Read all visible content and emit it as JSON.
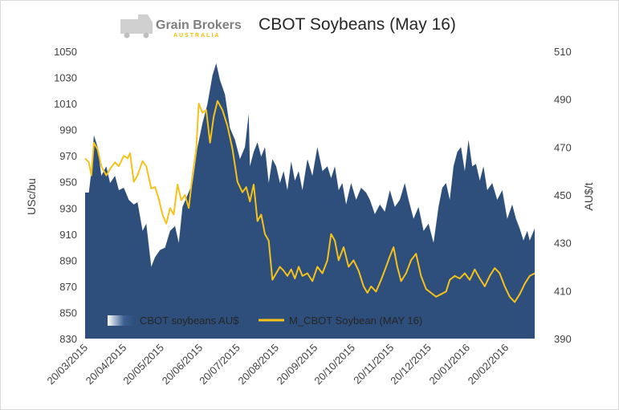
{
  "chart_data": {
    "type": "area",
    "title": "CBOT Soybeans (May 16)",
    "logo": {
      "name": "Grain Brokers",
      "sub": "AUSTRALIA"
    },
    "ylabel_left": "USc/bu",
    "ylabel_right": "AU$/t",
    "ylim_left": [
      830,
      1050
    ],
    "ylim_right": [
      390,
      510
    ],
    "yticks_left": [
      "1050",
      "1030",
      "1010",
      "990",
      "970",
      "950",
      "930",
      "910",
      "890",
      "870",
      "850",
      "830"
    ],
    "yticks_right": [
      "510",
      "490",
      "470",
      "450",
      "430",
      "410",
      "390"
    ],
    "xticks": [
      "20/03/2015",
      "20/04/2015",
      "20/05/2015",
      "20/06/2015",
      "20/07/2015",
      "20/08/2015",
      "20/09/2015",
      "20/10/2015",
      "20/11/2015",
      "20/12/2015",
      "20/01/2016",
      "20/02/2016"
    ],
    "x_range": [
      "2015-03-20",
      "2016-03-14"
    ],
    "grid": false,
    "legend": "bottom-left",
    "series": [
      {
        "name": "CBOT soybeans AU$",
        "kind": "area",
        "axis": "right",
        "color": "#2e4e7b",
        "points": [
          [
            "2015-03-20",
            451
          ],
          [
            "2015-03-23",
            451
          ],
          [
            "2015-03-25",
            460
          ],
          [
            "2015-03-27",
            475
          ],
          [
            "2015-03-30",
            470
          ],
          [
            "2015-04-02",
            458
          ],
          [
            "2015-04-06",
            462
          ],
          [
            "2015-04-09",
            455
          ],
          [
            "2015-04-13",
            458
          ],
          [
            "2015-04-16",
            452
          ],
          [
            "2015-04-20",
            453
          ],
          [
            "2015-04-24",
            448
          ],
          [
            "2015-04-28",
            446
          ],
          [
            "2015-05-01",
            447
          ],
          [
            "2015-05-05",
            435
          ],
          [
            "2015-05-08",
            438
          ],
          [
            "2015-05-12",
            420
          ],
          [
            "2015-05-15",
            424
          ],
          [
            "2015-05-19",
            427
          ],
          [
            "2015-05-23",
            428
          ],
          [
            "2015-05-27",
            435
          ],
          [
            "2015-05-31",
            437
          ],
          [
            "2015-06-03",
            430
          ],
          [
            "2015-06-06",
            445
          ],
          [
            "2015-06-10",
            450
          ],
          [
            "2015-06-14",
            455
          ],
          [
            "2015-06-18",
            470
          ],
          [
            "2015-06-22",
            480
          ],
          [
            "2015-06-26",
            488
          ],
          [
            "2015-06-30",
            500
          ],
          [
            "2015-07-03",
            505
          ],
          [
            "2015-07-06",
            498
          ],
          [
            "2015-07-10",
            492
          ],
          [
            "2015-07-14",
            478
          ],
          [
            "2015-07-18",
            473
          ],
          [
            "2015-07-22",
            465
          ],
          [
            "2015-07-26",
            470
          ],
          [
            "2015-07-29",
            484
          ],
          [
            "2015-07-30",
            462
          ],
          [
            "2015-08-02",
            468
          ],
          [
            "2015-08-05",
            472
          ],
          [
            "2015-08-08",
            466
          ],
          [
            "2015-08-11",
            470
          ],
          [
            "2015-08-14",
            455
          ],
          [
            "2015-08-17",
            465
          ],
          [
            "2015-08-20",
            462
          ],
          [
            "2015-08-23",
            455
          ],
          [
            "2015-08-26",
            460
          ],
          [
            "2015-08-29",
            452
          ],
          [
            "2015-09-01",
            464
          ],
          [
            "2015-09-04",
            456
          ],
          [
            "2015-09-07",
            460
          ],
          [
            "2015-09-10",
            452
          ],
          [
            "2015-09-14",
            465
          ],
          [
            "2015-09-18",
            458
          ],
          [
            "2015-09-22",
            470
          ],
          [
            "2015-09-26",
            460
          ],
          [
            "2015-09-30",
            462
          ],
          [
            "2015-10-03",
            457
          ],
          [
            "2015-10-06",
            462
          ],
          [
            "2015-10-09",
            452
          ],
          [
            "2015-10-12",
            455
          ],
          [
            "2015-10-15",
            446
          ],
          [
            "2015-10-19",
            455
          ],
          [
            "2015-10-23",
            448
          ],
          [
            "2015-10-27",
            453
          ],
          [
            "2015-10-31",
            451
          ],
          [
            "2015-11-03",
            448
          ],
          [
            "2015-11-07",
            442
          ],
          [
            "2015-11-11",
            446
          ],
          [
            "2015-11-15",
            443
          ],
          [
            "2015-11-19",
            452
          ],
          [
            "2015-11-23",
            445
          ],
          [
            "2015-11-27",
            448
          ],
          [
            "2015-12-01",
            455
          ],
          [
            "2015-12-04",
            448
          ],
          [
            "2015-12-08",
            440
          ],
          [
            "2015-12-12",
            445
          ],
          [
            "2015-12-16",
            435
          ],
          [
            "2015-12-20",
            438
          ],
          [
            "2015-12-24",
            430
          ],
          [
            "2015-12-28",
            445
          ],
          [
            "2015-12-31",
            453
          ],
          [
            "2016-01-03",
            455
          ],
          [
            "2016-01-06",
            448
          ],
          [
            "2016-01-09",
            462
          ],
          [
            "2016-01-12",
            468
          ],
          [
            "2016-01-15",
            470
          ],
          [
            "2016-01-18",
            460
          ],
          [
            "2016-01-21",
            473
          ],
          [
            "2016-01-24",
            462
          ],
          [
            "2016-01-27",
            463
          ],
          [
            "2016-01-30",
            456
          ],
          [
            "2016-02-02",
            462
          ],
          [
            "2016-02-05",
            452
          ],
          [
            "2016-02-09",
            455
          ],
          [
            "2016-02-13",
            448
          ],
          [
            "2016-02-17",
            452
          ],
          [
            "2016-02-21",
            440
          ],
          [
            "2016-02-25",
            446
          ],
          [
            "2016-02-28",
            440
          ],
          [
            "2016-03-02",
            436
          ],
          [
            "2016-03-05",
            431
          ],
          [
            "2016-03-08",
            435
          ],
          [
            "2016-03-10",
            431
          ],
          [
            "2016-03-14",
            436
          ]
        ]
      },
      {
        "name": "M_CBOT Soybean (MAY 16)",
        "kind": "line",
        "axis": "left",
        "color": "#f5c21b",
        "points": [
          [
            "2015-03-20",
            968
          ],
          [
            "2015-03-23",
            965
          ],
          [
            "2015-03-25",
            955
          ],
          [
            "2015-03-27",
            980
          ],
          [
            "2015-03-30",
            975
          ],
          [
            "2015-04-02",
            962
          ],
          [
            "2015-04-06",
            955
          ],
          [
            "2015-04-09",
            960
          ],
          [
            "2015-04-13",
            965
          ],
          [
            "2015-04-16",
            962
          ],
          [
            "2015-04-20",
            970
          ],
          [
            "2015-04-23",
            968
          ],
          [
            "2015-04-25",
            972
          ],
          [
            "2015-04-28",
            950
          ],
          [
            "2015-05-01",
            955
          ],
          [
            "2015-05-05",
            966
          ],
          [
            "2015-05-08",
            962
          ],
          [
            "2015-05-12",
            945
          ],
          [
            "2015-05-15",
            946
          ],
          [
            "2015-05-18",
            937
          ],
          [
            "2015-05-21",
            925
          ],
          [
            "2015-05-24",
            918
          ],
          [
            "2015-05-27",
            930
          ],
          [
            "2015-05-30",
            925
          ],
          [
            "2015-06-02",
            948
          ],
          [
            "2015-06-05",
            936
          ],
          [
            "2015-06-08",
            940
          ],
          [
            "2015-06-11",
            930
          ],
          [
            "2015-06-14",
            955
          ],
          [
            "2015-06-17",
            975
          ],
          [
            "2015-06-19",
            1010
          ],
          [
            "2015-06-22",
            1003
          ],
          [
            "2015-06-25",
            1005
          ],
          [
            "2015-06-28",
            980
          ],
          [
            "2015-07-01",
            1000
          ],
          [
            "2015-07-04",
            1012
          ],
          [
            "2015-07-08",
            1005
          ],
          [
            "2015-07-12",
            993
          ],
          [
            "2015-07-16",
            975
          ],
          [
            "2015-07-20",
            950
          ],
          [
            "2015-07-24",
            942
          ],
          [
            "2015-07-27",
            946
          ],
          [
            "2015-07-30",
            935
          ],
          [
            "2015-08-02",
            948
          ],
          [
            "2015-08-05",
            920
          ],
          [
            "2015-08-08",
            925
          ],
          [
            "2015-08-11",
            910
          ],
          [
            "2015-08-14",
            905
          ],
          [
            "2015-08-17",
            875
          ],
          [
            "2015-08-20",
            880
          ],
          [
            "2015-08-23",
            885
          ],
          [
            "2015-08-26",
            882
          ],
          [
            "2015-08-29",
            878
          ],
          [
            "2015-09-01",
            883
          ],
          [
            "2015-09-04",
            876
          ],
          [
            "2015-09-07",
            885
          ],
          [
            "2015-09-10",
            878
          ],
          [
            "2015-09-14",
            880
          ],
          [
            "2015-09-18",
            874
          ],
          [
            "2015-09-22",
            885
          ],
          [
            "2015-09-26",
            880
          ],
          [
            "2015-09-30",
            890
          ],
          [
            "2015-10-03",
            910
          ],
          [
            "2015-10-06",
            905
          ],
          [
            "2015-10-09",
            890
          ],
          [
            "2015-10-13",
            900
          ],
          [
            "2015-10-17",
            885
          ],
          [
            "2015-10-21",
            890
          ],
          [
            "2015-10-25",
            882
          ],
          [
            "2015-10-29",
            870
          ],
          [
            "2015-11-01",
            865
          ],
          [
            "2015-11-04",
            870
          ],
          [
            "2015-11-08",
            866
          ],
          [
            "2015-11-12",
            875
          ],
          [
            "2015-11-16",
            885
          ],
          [
            "2015-11-19",
            893
          ],
          [
            "2015-11-22",
            900
          ],
          [
            "2015-11-25",
            885
          ],
          [
            "2015-11-28",
            874
          ],
          [
            "2015-12-02",
            880
          ],
          [
            "2015-12-06",
            890
          ],
          [
            "2015-12-10",
            895
          ],
          [
            "2015-12-14",
            878
          ],
          [
            "2015-12-18",
            868
          ],
          [
            "2015-12-22",
            865
          ],
          [
            "2015-12-26",
            862
          ],
          [
            "2015-12-30",
            864
          ],
          [
            "2016-01-03",
            866
          ],
          [
            "2016-01-06",
            875
          ],
          [
            "2016-01-10",
            878
          ],
          [
            "2016-01-14",
            876
          ],
          [
            "2016-01-18",
            880
          ],
          [
            "2016-01-22",
            875
          ],
          [
            "2016-01-26",
            883
          ],
          [
            "2016-01-30",
            876
          ],
          [
            "2016-02-03",
            870
          ],
          [
            "2016-02-07",
            878
          ],
          [
            "2016-02-11",
            884
          ],
          [
            "2016-02-15",
            880
          ],
          [
            "2016-02-19",
            870
          ],
          [
            "2016-02-23",
            862
          ],
          [
            "2016-02-27",
            858
          ],
          [
            "2016-03-02",
            864
          ],
          [
            "2016-03-06",
            872
          ],
          [
            "2016-03-10",
            878
          ],
          [
            "2016-03-14",
            880
          ]
        ]
      }
    ]
  }
}
